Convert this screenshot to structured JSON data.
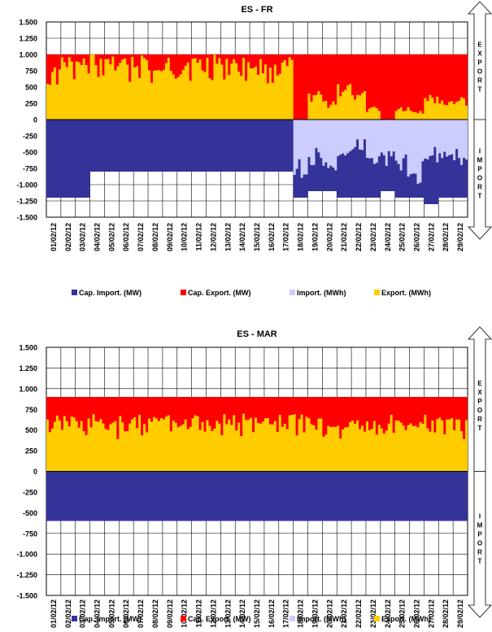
{
  "legend_labels": [
    "Cap. Import. (MW)",
    "Cap. Export. (MW)",
    "Import. (MWh)",
    "Export. (MWh)"
  ],
  "series_colors": {
    "cap_import": "#333399",
    "cap_export": "#ff0000",
    "import": "#ccccff",
    "export": "#ffcc00"
  },
  "arrow_labels": {
    "export": "EXPORT",
    "import": "IMPORT"
  },
  "chart_data": [
    {
      "type": "area",
      "title": "ES - FR",
      "xlabel": "",
      "ylabel": "",
      "ylim": [
        -1500,
        1500
      ],
      "yticks": [
        "1.500",
        "1.250",
        "1.000",
        "750",
        "500",
        "250",
        "0",
        "-250",
        "-500",
        "-750",
        "-1.000",
        "-1.250",
        "-1.500"
      ],
      "categories": [
        "01/02/12",
        "02/02/12",
        "03/02/12",
        "04/02/12",
        "05/02/12",
        "06/02/12",
        "07/02/12",
        "08/02/12",
        "09/02/12",
        "10/02/12",
        "11/02/12",
        "12/02/12",
        "13/02/12",
        "14/02/12",
        "15/02/12",
        "16/02/12",
        "17/02/12",
        "18/02/12",
        "19/02/12",
        "20/02/12",
        "21/02/12",
        "22/02/12",
        "23/02/12",
        "24/02/12",
        "25/02/12",
        "26/02/12",
        "27/02/12",
        "28/02/12",
        "29/02/12"
      ],
      "grid": true,
      "legend_position": "bottom",
      "series": [
        {
          "name": "Cap. Import. (MW)",
          "values": [
            -1200,
            -1200,
            -1200,
            -800,
            -800,
            -800,
            -800,
            -800,
            -800,
            -800,
            -800,
            -800,
            -800,
            -800,
            -800,
            -800,
            -800,
            -1200,
            -1100,
            -1100,
            -1200,
            -1200,
            -1200,
            -1100,
            -1200,
            -1200,
            -1300,
            -1200,
            -1200
          ]
        },
        {
          "name": "Cap. Export. (MW)",
          "values": [
            1000,
            1000,
            1000,
            1000,
            1000,
            1000,
            1000,
            1000,
            1000,
            1000,
            1000,
            1000,
            1000,
            1000,
            1000,
            1000,
            1000,
            1000,
            1000,
            1000,
            1000,
            1000,
            1000,
            1000,
            1000,
            1000,
            1000,
            1000,
            1000
          ]
        },
        {
          "name": "Import. (MWh)",
          "values": [
            0,
            0,
            0,
            0,
            0,
            0,
            0,
            0,
            0,
            0,
            0,
            0,
            0,
            0,
            0,
            0,
            0,
            -900,
            -700,
            -800,
            -600,
            -500,
            -700,
            -800,
            -900,
            -1000,
            -700,
            -600,
            -700
          ]
        },
        {
          "name": "Export. (MWh)",
          "values": [
            850,
            1000,
            950,
            1000,
            1000,
            1000,
            1000,
            800,
            1000,
            1000,
            950,
            1000,
            1000,
            1000,
            1000,
            950,
            1000,
            0,
            450,
            300,
            550,
            450,
            200,
            0,
            200,
            150,
            400,
            300,
            350
          ]
        }
      ]
    },
    {
      "type": "area",
      "title": "ES - MAR",
      "xlabel": "",
      "ylabel": "",
      "ylim": [
        -1500,
        1500
      ],
      "yticks": [
        "1.500",
        "1.250",
        "1.000",
        "750",
        "500",
        "250",
        "0",
        "-250",
        "-500",
        "-750",
        "-1.000",
        "-1.250",
        "-1.500"
      ],
      "categories": [
        "01/02/12",
        "02/02/12",
        "03/02/12",
        "04/02/12",
        "05/02/12",
        "06/02/12",
        "07/02/12",
        "08/02/12",
        "09/02/12",
        "10/02/12",
        "11/02/12",
        "12/02/12",
        "13/02/12",
        "14/02/12",
        "15/02/12",
        "16/02/12",
        "17/02/12",
        "18/02/12",
        "19/02/12",
        "20/02/12",
        "21/02/12",
        "22/02/12",
        "23/02/12",
        "24/02/12",
        "25/02/12",
        "26/02/12",
        "27/02/12",
        "28/02/12",
        "29/02/12"
      ],
      "grid": true,
      "legend_position": "bottom",
      "series": [
        {
          "name": "Cap. Import. (MW)",
          "values": [
            -600,
            -600,
            -600,
            -600,
            -600,
            -600,
            -600,
            -600,
            -600,
            -600,
            -600,
            -600,
            -600,
            -600,
            -600,
            -600,
            -600,
            -600,
            -600,
            -600,
            -600,
            -600,
            -600,
            -600,
            -600,
            -600,
            -600,
            -600,
            -600
          ]
        },
        {
          "name": "Cap. Export. (MW)",
          "values": [
            900,
            900,
            900,
            900,
            900,
            900,
            900,
            900,
            900,
            900,
            900,
            900,
            900,
            900,
            900,
            900,
            900,
            900,
            900,
            900,
            900,
            900,
            900,
            900,
            900,
            900,
            900,
            900,
            900
          ]
        },
        {
          "name": "Import. (MWh)",
          "values": [
            0,
            0,
            0,
            0,
            0,
            0,
            0,
            0,
            0,
            0,
            0,
            0,
            0,
            0,
            0,
            0,
            0,
            0,
            0,
            0,
            0,
            0,
            0,
            0,
            0,
            0,
            0,
            0,
            0
          ]
        },
        {
          "name": "Export. (MWh)",
          "values": [
            700,
            700,
            650,
            700,
            650,
            700,
            700,
            700,
            700,
            650,
            700,
            700,
            700,
            700,
            700,
            700,
            700,
            700,
            650,
            600,
            650,
            650,
            650,
            700,
            650,
            650,
            700,
            650,
            650
          ]
        }
      ]
    }
  ]
}
